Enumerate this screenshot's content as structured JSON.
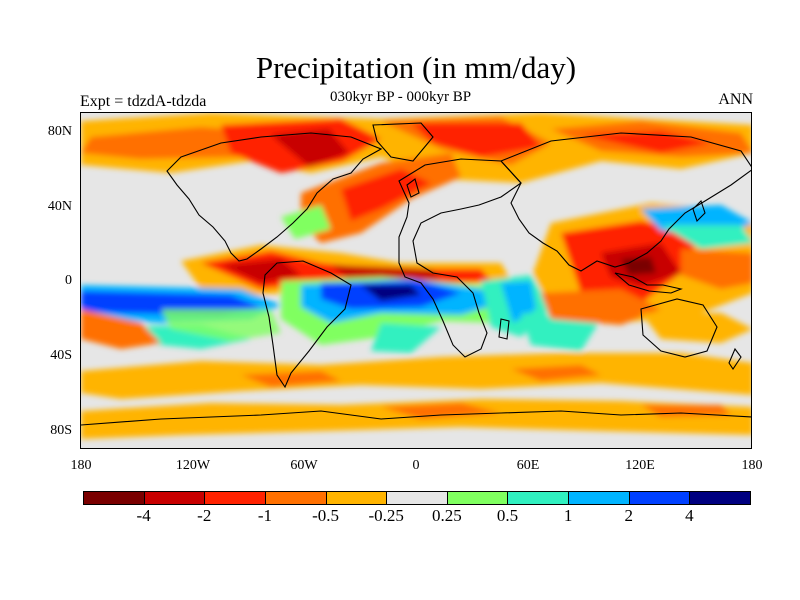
{
  "title": "Precipitation (in mm/day)",
  "subtitle": "030kyr BP - 000kyr BP",
  "left_label": "Expt = tdzdA-tdzda",
  "right_label": "ANN",
  "lat_labels": [
    "80N",
    "40N",
    "0",
    "40S",
    "80S"
  ],
  "lon_labels": [
    "180",
    "120W",
    "60W",
    "0",
    "60E",
    "120E",
    "180"
  ],
  "colorbar": {
    "labels": [
      "-4",
      "-2",
      "-1",
      "-0.5",
      "-0.25",
      "0.25",
      "0.5",
      "1",
      "2",
      "4"
    ],
    "colors": [
      "#7a0000",
      "#c80000",
      "#ff2200",
      "#ff7000",
      "#ffb400",
      "#e6e6e6",
      "#80ff60",
      "#30f0c0",
      "#00b4ff",
      "#0040ff",
      "#000080"
    ]
  },
  "palette": {
    "ocean_neutral": "#e6e6e6",
    "coastline": "#000000"
  }
}
